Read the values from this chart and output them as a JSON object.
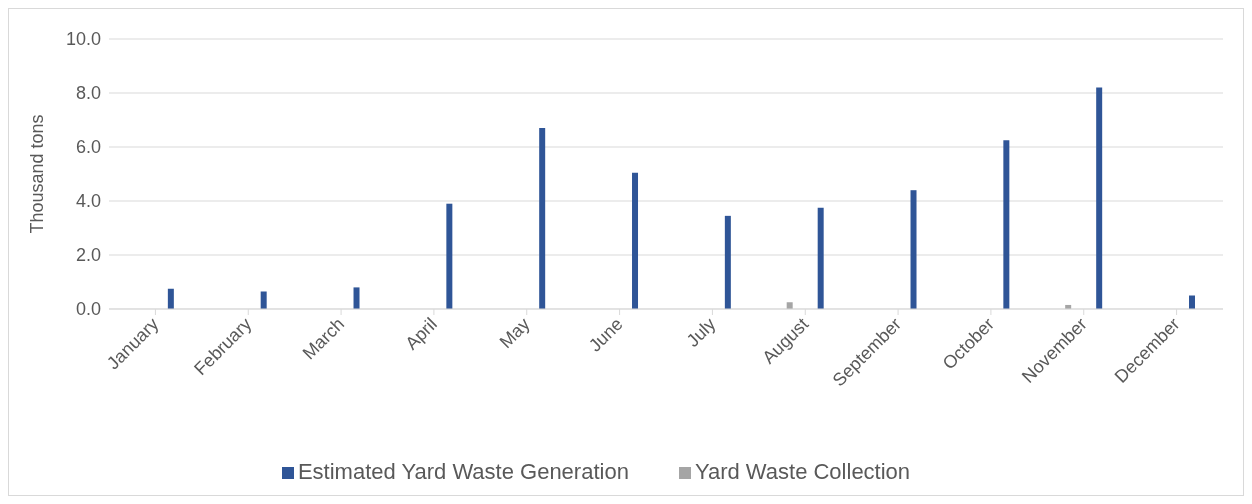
{
  "chart_data": {
    "type": "bar",
    "ylabel": "Thousand tons",
    "categories": [
      "January",
      "February",
      "March",
      "April",
      "May",
      "June",
      "July",
      "August",
      "September",
      "October",
      "November",
      "December"
    ],
    "series": [
      {
        "name": "Yard Waste Collection",
        "color": "#a5a5a5",
        "values": [
          0,
          0,
          0,
          0,
          0,
          0,
          0,
          0.25,
          0,
          0,
          0.15,
          0
        ]
      },
      {
        "name": "Estimated Yard Waste Generation",
        "color": "#2f5597",
        "values": [
          0.75,
          0.65,
          0.8,
          3.9,
          6.7,
          5.05,
          3.45,
          3.75,
          4.4,
          6.25,
          8.2,
          0.5
        ]
      }
    ],
    "ylim": [
      0,
      10
    ],
    "yticks": [
      {
        "value": 0,
        "label": "0.0"
      },
      {
        "value": 2,
        "label": "2.0"
      },
      {
        "value": 4,
        "label": "4.0"
      },
      {
        "value": 6,
        "label": "6.0"
      },
      {
        "value": 8,
        "label": "8.0"
      },
      {
        "value": 10,
        "label": "10.0"
      }
    ],
    "grid": "y",
    "legend": "bottom"
  }
}
